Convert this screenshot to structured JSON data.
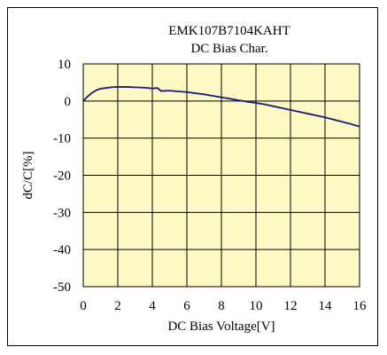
{
  "chart_data": {
    "type": "line",
    "title": "EMK107B7104KAHT",
    "subtitle": "DC Bias Char.",
    "xlabel": "DC Bias Voltage[V]",
    "ylabel": "dC/C[%]",
    "xlim": [
      0,
      16
    ],
    "ylim": [
      -50,
      10
    ],
    "xticks": [
      0,
      2,
      4,
      6,
      8,
      10,
      12,
      14,
      16
    ],
    "yticks": [
      10,
      0,
      -10,
      -20,
      -30,
      -40,
      -50
    ],
    "grid": true,
    "series": [
      {
        "color": "#1a1a7a",
        "x": [
          0,
          0.25,
          0.5,
          0.8,
          1.0,
          1.3,
          1.6,
          2.0,
          2.5,
          3.0,
          3.5,
          4.0,
          4.3,
          4.5,
          5.0,
          5.5,
          6.0,
          6.5,
          7.0,
          7.5,
          8.0,
          8.5,
          9.0,
          9.5,
          10.0,
          10.5,
          11.0,
          11.5,
          12.0,
          12.5,
          13.0,
          13.5,
          14.0,
          14.5,
          15.0,
          15.5,
          16.0
        ],
        "values": [
          0,
          1.2,
          2.2,
          3.0,
          3.3,
          3.5,
          3.7,
          3.8,
          3.8,
          3.7,
          3.6,
          3.4,
          3.5,
          2.7,
          2.8,
          2.6,
          2.4,
          2.1,
          1.8,
          1.4,
          1.0,
          0.6,
          0.2,
          -0.2,
          -0.5,
          -0.9,
          -1.4,
          -1.9,
          -2.4,
          -2.9,
          -3.4,
          -3.9,
          -4.4,
          -5.0,
          -5.6,
          -6.2,
          -6.9
        ]
      }
    ],
    "colors": {
      "plot_background": "#fdf9c4",
      "grid": "#000000",
      "line": "#1a1a7a"
    }
  }
}
